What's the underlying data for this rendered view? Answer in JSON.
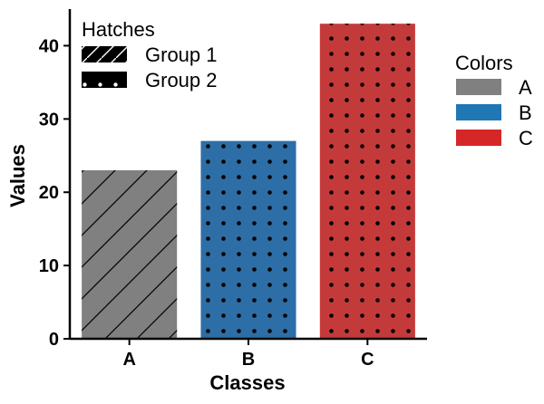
{
  "chart_data": {
    "type": "bar",
    "categories": [
      "A",
      "B",
      "C"
    ],
    "values": [
      23,
      27,
      43
    ],
    "colors": [
      "#808080",
      "#2e6ea6",
      "#c43a3a"
    ],
    "hatches": [
      "diagonal",
      "dots",
      "dots"
    ],
    "xlabel": "Classes",
    "ylabel": "Values",
    "ylim": [
      0,
      45
    ],
    "yticks": [
      0,
      10,
      20,
      30,
      40
    ],
    "grid": false,
    "legends": {
      "hatches": {
        "title": "Hatches",
        "placement": "top-left",
        "entries": [
          {
            "label": "Group 1",
            "hatch": "diagonal"
          },
          {
            "label": "Group 2",
            "hatch": "dots"
          }
        ]
      },
      "colors": {
        "title": "Colors",
        "placement": "outside-right",
        "entries": [
          {
            "label": "A",
            "color": "#808080"
          },
          {
            "label": "B",
            "color": "#1f77b4"
          },
          {
            "label": "C",
            "color": "#d62728"
          }
        ]
      }
    }
  }
}
